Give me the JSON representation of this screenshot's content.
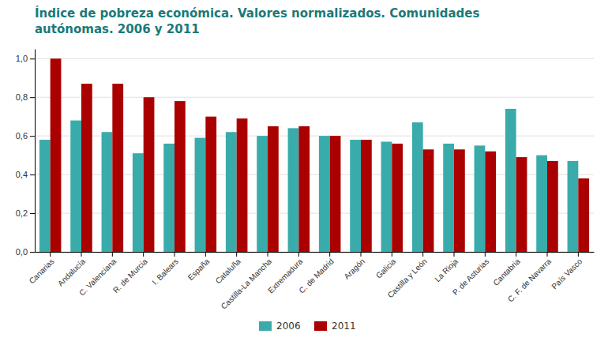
{
  "chart_data": {
    "type": "bar",
    "title": "Índice de pobreza económica. Valores normalizados. Comunidades\nautónomas. 2006 y 2011",
    "categories": [
      "Canarias",
      "Andalucía",
      "C. Valenciana",
      "R. de Murcia",
      "I. Balears",
      "España",
      "Cataluña",
      "Castilla-La Mancha",
      "Extremadura",
      "C. de Madrid",
      "Aragón",
      "Galicia",
      "Castilla y León",
      "La Rioja",
      "P. de Asturias",
      "Cantabria",
      "C. F. de Navarra",
      "País Vasco"
    ],
    "series": [
      {
        "name": "2006",
        "color": "#3aabab",
        "values": [
          0.58,
          0.68,
          0.62,
          0.51,
          0.56,
          0.59,
          0.62,
          0.6,
          0.64,
          0.6,
          0.58,
          0.57,
          0.67,
          0.56,
          0.55,
          0.74,
          0.5,
          0.47
        ]
      },
      {
        "name": "2011",
        "color": "#aa0000",
        "values": [
          1.0,
          0.87,
          0.87,
          0.8,
          0.78,
          0.7,
          0.69,
          0.65,
          0.65,
          0.6,
          0.58,
          0.56,
          0.53,
          0.53,
          0.52,
          0.49,
          0.47,
          0.38
        ]
      }
    ],
    "ylim": [
      0,
      1.05
    ],
    "yticks": [
      {
        "value": 0.0,
        "label": "0,0"
      },
      {
        "value": 0.2,
        "label": "0,2"
      },
      {
        "value": 0.4,
        "label": "0,4"
      },
      {
        "value": 0.6,
        "label": "0,6"
      },
      {
        "value": 0.8,
        "label": "0,8"
      },
      {
        "value": 1.0,
        "label": "1,0"
      }
    ],
    "grid": true,
    "legend": "bottom"
  }
}
